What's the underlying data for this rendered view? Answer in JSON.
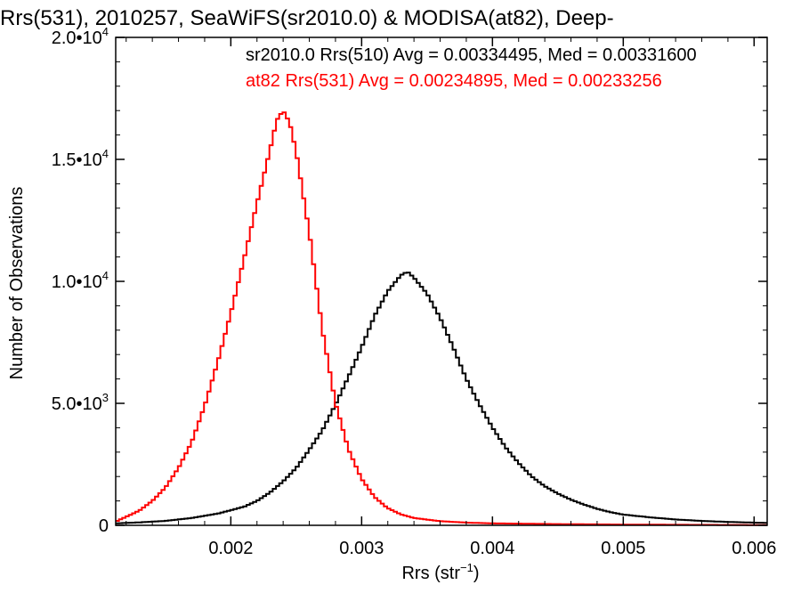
{
  "chart_data": {
    "type": "line",
    "title": "Rrs(531), 2010257, SeaWiFS(sr2010.0) & MODISA(at82), Deep-",
    "xlabel": "Rrs (str",
    "xlabel_sup": "−1",
    "xlabel_end": ")",
    "ylabel": "Number of Observations",
    "xlim": [
      0.00112,
      0.0061
    ],
    "ylim": [
      0,
      20000
    ],
    "x_ticks": [
      {
        "value": 0.002,
        "label": "0.002"
      },
      {
        "value": 0.003,
        "label": "0.003"
      },
      {
        "value": 0.004,
        "label": "0.004"
      },
      {
        "value": 0.005,
        "label": "0.005"
      },
      {
        "value": 0.006,
        "label": "0.006"
      }
    ],
    "y_ticks": [
      {
        "value": 0,
        "mant": "0",
        "exp": ""
      },
      {
        "value": 5000,
        "mant": "5.0•10",
        "exp": "3"
      },
      {
        "value": 10000,
        "mant": "1.0•10",
        "exp": "4"
      },
      {
        "value": 15000,
        "mant": "1.5•10",
        "exp": "4"
      },
      {
        "value": 20000,
        "mant": "2.0•10",
        "exp": "4"
      }
    ],
    "grid": false,
    "legend_placement": "top-right",
    "series": [
      {
        "name": "sr2010.0 Rrs(510) Avg = 0.00334495, Med = 0.00331600",
        "color": "#000000",
        "points": [
          [
            0.00112,
            80
          ],
          [
            0.0013,
            120
          ],
          [
            0.0015,
            180
          ],
          [
            0.0017,
            300
          ],
          [
            0.0019,
            480
          ],
          [
            0.0021,
            760
          ],
          [
            0.0022,
            1000
          ],
          [
            0.0023,
            1350
          ],
          [
            0.0024,
            1800
          ],
          [
            0.0025,
            2350
          ],
          [
            0.0026,
            3100
          ],
          [
            0.0027,
            3900
          ],
          [
            0.0028,
            4950
          ],
          [
            0.0029,
            6100
          ],
          [
            0.003,
            7300
          ],
          [
            0.0031,
            8600
          ],
          [
            0.0032,
            9600
          ],
          [
            0.0033,
            10250
          ],
          [
            0.00335,
            10400
          ],
          [
            0.0034,
            10150
          ],
          [
            0.0035,
            9500
          ],
          [
            0.0036,
            8500
          ],
          [
            0.0037,
            7300
          ],
          [
            0.0038,
            6000
          ],
          [
            0.0039,
            4950
          ],
          [
            0.004,
            4000
          ],
          [
            0.0041,
            3200
          ],
          [
            0.0042,
            2550
          ],
          [
            0.0043,
            2000
          ],
          [
            0.0044,
            1600
          ],
          [
            0.0045,
            1300
          ],
          [
            0.0046,
            1050
          ],
          [
            0.0047,
            850
          ],
          [
            0.0048,
            680
          ],
          [
            0.0049,
            540
          ],
          [
            0.005,
            440
          ],
          [
            0.0052,
            330
          ],
          [
            0.0054,
            240
          ],
          [
            0.0056,
            180
          ],
          [
            0.0058,
            140
          ],
          [
            0.006,
            110
          ],
          [
            0.0061,
            100
          ]
        ]
      },
      {
        "name": "at82 Rrs(531) Avg = 0.00234895, Med = 0.00233256",
        "color": "#ff0000",
        "points": [
          [
            0.00112,
            150
          ],
          [
            0.0013,
            600
          ],
          [
            0.0014,
            1000
          ],
          [
            0.0015,
            1550
          ],
          [
            0.0016,
            2350
          ],
          [
            0.0017,
            3400
          ],
          [
            0.0018,
            4900
          ],
          [
            0.0019,
            6700
          ],
          [
            0.002,
            8700
          ],
          [
            0.0021,
            10900
          ],
          [
            0.0022,
            13200
          ],
          [
            0.0023,
            15400
          ],
          [
            0.00235,
            16600
          ],
          [
            0.0024,
            17000
          ],
          [
            0.00245,
            16500
          ],
          [
            0.0025,
            15300
          ],
          [
            0.0026,
            12000
          ],
          [
            0.0027,
            8000
          ],
          [
            0.0028,
            5000
          ],
          [
            0.0029,
            3100
          ],
          [
            0.003,
            1900
          ],
          [
            0.0031,
            1150
          ],
          [
            0.0032,
            700
          ],
          [
            0.0033,
            450
          ],
          [
            0.0034,
            300
          ],
          [
            0.0036,
            170
          ],
          [
            0.0038,
            110
          ],
          [
            0.004,
            80
          ],
          [
            0.0045,
            50
          ],
          [
            0.005,
            30
          ],
          [
            0.0055,
            20
          ],
          [
            0.0061,
            10
          ]
        ]
      }
    ]
  }
}
